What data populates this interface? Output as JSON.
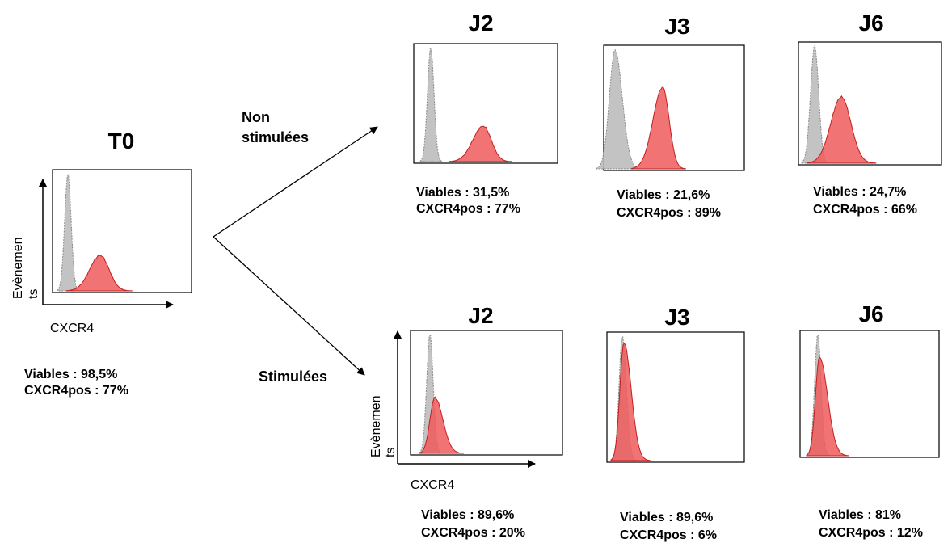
{
  "colors": {
    "isotype_fill": "#b9b9b9",
    "isotype_stroke": "#8a8a8a",
    "cxcr4_fill": "#f05a5a",
    "cxcr4_stroke": "#c02020",
    "frame": "#000000"
  },
  "t0": {
    "title": "T0",
    "ylabel_line1": "Evènemen",
    "ylabel_line2": "ts",
    "xlabel": "CXCR4",
    "viables": "Viables : 98,5%",
    "cxcr4pos": "CXCR4pos : 77%"
  },
  "arrows": {
    "non_stim_line1": "Non",
    "non_stim_line2": "stimulées",
    "stim": "Stimulées"
  },
  "non_stimulated": [
    {
      "title": "J2",
      "viables": "Viables : 31,5%",
      "cxcr4pos": "CXCR4pos : 77%"
    },
    {
      "title": "J3",
      "viables": "Viables : 21,6%",
      "cxcr4pos": "CXCR4pos : 89%"
    },
    {
      "title": "J6",
      "viables": "Viables : 24,7%",
      "cxcr4pos": "CXCR4pos : 66%"
    }
  ],
  "stimulated": [
    {
      "title": "J2",
      "viables": "Viables : 89,6%",
      "cxcr4pos": "CXCR4pos : 20%"
    },
    {
      "title": "J3",
      "viables": "Viables : 89,6%",
      "cxcr4pos": "CXCR4pos : 6%"
    },
    {
      "title": "J6",
      "viables": "Viables : 81%",
      "cxcr4pos": "CXCR4pos : 12%"
    }
  ],
  "stim_axes": {
    "ylabel_line1": "Evènemen",
    "ylabel_line2": "ts",
    "xlabel": "CXCR4"
  }
}
